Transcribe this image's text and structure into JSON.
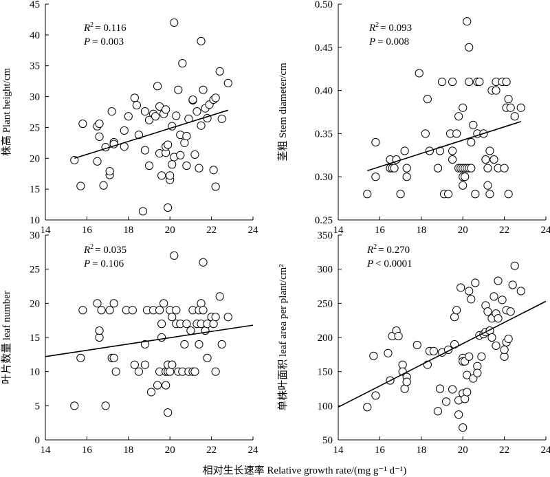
{
  "xlabel": "相对生长速率 Relative growth rate/(mg g⁻¹ d⁻¹)",
  "chart_data": [
    {
      "type": "scatter",
      "ylabel": "株高 Plant height/cm",
      "stat_r2": "= 0.116",
      "stat_p": "= 0.003",
      "xlim": [
        14,
        24
      ],
      "ylim": [
        10,
        45
      ],
      "xticks": [
        "14",
        "16",
        "18",
        "20",
        "22",
        "24"
      ],
      "yticks": [
        "10",
        "15",
        "20",
        "25",
        "30",
        "35",
        "40",
        "45"
      ],
      "trendline": {
        "x": [
          15.4,
          22.8
        ],
        "y": [
          20.0,
          27.8
        ]
      },
      "points": [
        [
          15.4,
          19.7
        ],
        [
          15.7,
          15.5
        ],
        [
          15.8,
          25.6
        ],
        [
          16.5,
          19.5
        ],
        [
          16.5,
          25.2
        ],
        [
          16.6,
          25.6
        ],
        [
          16.6,
          23.5
        ],
        [
          16.8,
          15.6
        ],
        [
          16.9,
          21.8
        ],
        [
          17.1,
          17.3
        ],
        [
          17.1,
          17.9
        ],
        [
          17.2,
          27.6
        ],
        [
          17.3,
          22.6
        ],
        [
          17.3,
          22.3
        ],
        [
          17.8,
          21.9
        ],
        [
          17.8,
          24.5
        ],
        [
          18.0,
          26.8
        ],
        [
          18.3,
          29.8
        ],
        [
          18.4,
          28.6
        ],
        [
          18.5,
          23.8
        ],
        [
          18.7,
          11.4
        ],
        [
          18.8,
          21.3
        ],
        [
          18.8,
          27.6
        ],
        [
          19.0,
          26.2
        ],
        [
          19.0,
          18.8
        ],
        [
          19.2,
          27.2
        ],
        [
          19.3,
          26.8
        ],
        [
          19.4,
          31.7
        ],
        [
          19.5,
          20.8
        ],
        [
          19.5,
          28.4
        ],
        [
          19.6,
          17.2
        ],
        [
          19.7,
          27.2
        ],
        [
          19.8,
          20.9
        ],
        [
          19.8,
          21.9
        ],
        [
          19.8,
          27.9
        ],
        [
          19.9,
          12.0
        ],
        [
          19.9,
          22.2
        ],
        [
          20.0,
          16.5
        ],
        [
          20.0,
          17.2
        ],
        [
          20.1,
          19.0
        ],
        [
          20.1,
          25.2
        ],
        [
          20.2,
          42.0
        ],
        [
          20.2,
          20.2
        ],
        [
          20.3,
          26.9
        ],
        [
          20.4,
          31.1
        ],
        [
          20.5,
          20.5
        ],
        [
          20.5,
          23.8
        ],
        [
          20.6,
          35.4
        ],
        [
          20.7,
          22.5
        ],
        [
          20.8,
          18.8
        ],
        [
          20.8,
          23.6
        ],
        [
          20.9,
          26.4
        ],
        [
          21.1,
          29.4
        ],
        [
          21.1,
          29.5
        ],
        [
          21.2,
          20.6
        ],
        [
          21.3,
          27.6
        ],
        [
          21.4,
          18.4
        ],
        [
          21.5,
          39.0
        ],
        [
          21.5,
          25.3
        ],
        [
          21.6,
          31.1
        ],
        [
          21.7,
          28.1
        ],
        [
          21.8,
          26.5
        ],
        [
          21.9,
          28.7
        ],
        [
          22.1,
          18.1
        ],
        [
          22.1,
          29.5
        ],
        [
          22.2,
          29.8
        ],
        [
          22.2,
          15.4
        ],
        [
          22.4,
          34.1
        ],
        [
          22.5,
          26.4
        ],
        [
          22.8,
          32.2
        ]
      ]
    },
    {
      "type": "scatter",
      "ylabel": "茎粗  Stem diameter/cm",
      "stat_r2": "= 0.093",
      "stat_p": "= 0.008",
      "xlim": [
        14,
        24
      ],
      "ylim": [
        0.25,
        0.5
      ],
      "xticks": [
        "14",
        "16",
        "18",
        "20",
        "22",
        "24"
      ],
      "yticks": [
        "0.25",
        "0.30",
        "0.35",
        "0.40",
        "0.45",
        "0.50"
      ],
      "trendline": {
        "x": [
          15.4,
          22.8
        ],
        "y": [
          0.307,
          0.364
        ]
      },
      "points": [
        [
          15.4,
          0.28
        ],
        [
          15.8,
          0.3
        ],
        [
          15.8,
          0.34
        ],
        [
          16.5,
          0.32
        ],
        [
          16.5,
          0.31
        ],
        [
          16.6,
          0.31
        ],
        [
          16.7,
          0.31
        ],
        [
          16.8,
          0.32
        ],
        [
          17.0,
          0.28
        ],
        [
          17.2,
          0.33
        ],
        [
          17.3,
          0.31
        ],
        [
          17.3,
          0.3
        ],
        [
          17.9,
          0.42
        ],
        [
          18.2,
          0.35
        ],
        [
          18.3,
          0.39
        ],
        [
          18.4,
          0.33
        ],
        [
          18.8,
          0.31
        ],
        [
          18.8,
          0.31
        ],
        [
          18.9,
          0.33
        ],
        [
          19.0,
          0.41
        ],
        [
          19.1,
          0.28
        ],
        [
          19.3,
          0.28
        ],
        [
          19.4,
          0.35
        ],
        [
          19.5,
          0.41
        ],
        [
          19.5,
          0.33
        ],
        [
          19.5,
          0.32
        ],
        [
          19.7,
          0.35
        ],
        [
          19.8,
          0.31
        ],
        [
          19.8,
          0.37
        ],
        [
          19.9,
          0.31
        ],
        [
          20.0,
          0.3
        ],
        [
          20.0,
          0.38
        ],
        [
          20.0,
          0.29
        ],
        [
          20.0,
          0.31
        ],
        [
          20.1,
          0.3
        ],
        [
          20.1,
          0.31
        ],
        [
          20.2,
          0.48
        ],
        [
          20.2,
          0.31
        ],
        [
          20.3,
          0.45
        ],
        [
          20.3,
          0.31
        ],
        [
          20.3,
          0.41
        ],
        [
          20.4,
          0.34
        ],
        [
          20.4,
          0.31
        ],
        [
          20.5,
          0.36
        ],
        [
          20.6,
          0.28
        ],
        [
          20.7,
          0.41
        ],
        [
          20.7,
          0.35
        ],
        [
          20.8,
          0.41
        ],
        [
          21.0,
          0.35
        ],
        [
          21.1,
          0.32
        ],
        [
          21.2,
          0.31
        ],
        [
          21.2,
          0.29
        ],
        [
          21.3,
          0.33
        ],
        [
          21.3,
          0.28
        ],
        [
          21.4,
          0.4
        ],
        [
          21.5,
          0.32
        ],
        [
          21.6,
          0.41
        ],
        [
          21.6,
          0.4
        ],
        [
          21.7,
          0.31
        ],
        [
          21.9,
          0.41
        ],
        [
          22.0,
          0.31
        ],
        [
          22.1,
          0.41
        ],
        [
          22.1,
          0.38
        ],
        [
          22.2,
          0.28
        ],
        [
          22.2,
          0.39
        ],
        [
          22.3,
          0.38
        ],
        [
          22.5,
          0.37
        ],
        [
          22.8,
          0.38
        ]
      ]
    },
    {
      "type": "scatter",
      "ylabel": "叶片数量  leaf number",
      "stat_r2": "= 0.035",
      "stat_p": "= 0.106",
      "xlim": [
        14,
        24
      ],
      "ylim": [
        0,
        30
      ],
      "xticks": [
        "14",
        "16",
        "18",
        "20",
        "22",
        "24"
      ],
      "yticks": [
        "0",
        "5",
        "10",
        "15",
        "20",
        "25",
        "30"
      ],
      "trendline": {
        "x": [
          14.0,
          24.0
        ],
        "y": [
          12.2,
          16.8
        ]
      },
      "points": [
        [
          15.4,
          5
        ],
        [
          15.7,
          12
        ],
        [
          15.8,
          19
        ],
        [
          16.5,
          20
        ],
        [
          16.6,
          15
        ],
        [
          16.6,
          16
        ],
        [
          16.7,
          19
        ],
        [
          16.9,
          5
        ],
        [
          17.1,
          19
        ],
        [
          17.2,
          12
        ],
        [
          17.3,
          12
        ],
        [
          17.3,
          20
        ],
        [
          17.4,
          10
        ],
        [
          17.9,
          19
        ],
        [
          18.2,
          19
        ],
        [
          18.3,
          11
        ],
        [
          18.5,
          10
        ],
        [
          18.8,
          11
        ],
        [
          18.8,
          14
        ],
        [
          18.9,
          19
        ],
        [
          19.1,
          7
        ],
        [
          19.2,
          19
        ],
        [
          19.4,
          8
        ],
        [
          19.5,
          10
        ],
        [
          19.5,
          19
        ],
        [
          19.6,
          15
        ],
        [
          19.6,
          17
        ],
        [
          19.7,
          20
        ],
        [
          19.8,
          10
        ],
        [
          19.8,
          8
        ],
        [
          19.9,
          10
        ],
        [
          19.9,
          11
        ],
        [
          19.9,
          4
        ],
        [
          20.0,
          19
        ],
        [
          20.0,
          10
        ],
        [
          20.1,
          11
        ],
        [
          20.1,
          18
        ],
        [
          20.1,
          11
        ],
        [
          20.2,
          27
        ],
        [
          20.3,
          19
        ],
        [
          20.3,
          17
        ],
        [
          20.4,
          10
        ],
        [
          20.5,
          17
        ],
        [
          20.6,
          10
        ],
        [
          20.7,
          14
        ],
        [
          20.8,
          17
        ],
        [
          20.9,
          10
        ],
        [
          21.0,
          16
        ],
        [
          21.1,
          10
        ],
        [
          21.1,
          19
        ],
        [
          21.2,
          10
        ],
        [
          21.3,
          17
        ],
        [
          21.4,
          19
        ],
        [
          21.4,
          14
        ],
        [
          21.5,
          20
        ],
        [
          21.5,
          17
        ],
        [
          21.6,
          19
        ],
        [
          21.6,
          26
        ],
        [
          21.7,
          16
        ],
        [
          21.8,
          17
        ],
        [
          21.8,
          12
        ],
        [
          22.0,
          18
        ],
        [
          22.1,
          17
        ],
        [
          22.2,
          18
        ],
        [
          22.2,
          10
        ],
        [
          22.4,
          21
        ],
        [
          22.5,
          14
        ],
        [
          22.8,
          18
        ]
      ]
    },
    {
      "type": "scatter",
      "ylabel": "单株叶面积  leaf area per plant/cm²",
      "stat_r2": "= 0.270",
      "stat_p": "< 0.0001",
      "xlim": [
        14,
        24
      ],
      "ylim": [
        50,
        350
      ],
      "xticks": [
        "14",
        "16",
        "18",
        "20",
        "22",
        "24"
      ],
      "yticks": [
        "50",
        "100",
        "150",
        "200",
        "250",
        "300",
        "350"
      ],
      "trendline": {
        "x": [
          14.0,
          24.0
        ],
        "y": [
          98,
          253
        ]
      },
      "points": [
        [
          15.4,
          98
        ],
        [
          15.7,
          173
        ],
        [
          15.8,
          115
        ],
        [
          16.4,
          177
        ],
        [
          16.5,
          137
        ],
        [
          16.6,
          202
        ],
        [
          16.8,
          210
        ],
        [
          16.9,
          202
        ],
        [
          17.1,
          160
        ],
        [
          17.1,
          150
        ],
        [
          17.2,
          125
        ],
        [
          17.3,
          142
        ],
        [
          17.3,
          135
        ],
        [
          17.8,
          189
        ],
        [
          18.3,
          160
        ],
        [
          18.4,
          180
        ],
        [
          18.6,
          180
        ],
        [
          18.8,
          92
        ],
        [
          18.9,
          125
        ],
        [
          19.0,
          178
        ],
        [
          19.2,
          106
        ],
        [
          19.3,
          182
        ],
        [
          19.5,
          124
        ],
        [
          19.6,
          190
        ],
        [
          19.6,
          230
        ],
        [
          19.7,
          240
        ],
        [
          19.8,
          108
        ],
        [
          19.8,
          87
        ],
        [
          19.9,
          273
        ],
        [
          20.0,
          170
        ],
        [
          20.0,
          165
        ],
        [
          20.0,
          118
        ],
        [
          20.0,
          68
        ],
        [
          20.1,
          110
        ],
        [
          20.1,
          165
        ],
        [
          20.2,
          120
        ],
        [
          20.2,
          145
        ],
        [
          20.3,
          172
        ],
        [
          20.3,
          268
        ],
        [
          20.4,
          256
        ],
        [
          20.5,
          140
        ],
        [
          20.6,
          280
        ],
        [
          20.7,
          158
        ],
        [
          20.7,
          148
        ],
        [
          20.8,
          203
        ],
        [
          20.9,
          172
        ],
        [
          21.0,
          205
        ],
        [
          21.1,
          208
        ],
        [
          21.1,
          247
        ],
        [
          21.2,
          238
        ],
        [
          21.3,
          210
        ],
        [
          21.4,
          228
        ],
        [
          21.4,
          200
        ],
        [
          21.5,
          260
        ],
        [
          21.6,
          188
        ],
        [
          21.6,
          235
        ],
        [
          21.7,
          283
        ],
        [
          21.7,
          228
        ],
        [
          21.9,
          255
        ],
        [
          22.0,
          172
        ],
        [
          22.0,
          182
        ],
        [
          22.1,
          240
        ],
        [
          22.1,
          193
        ],
        [
          22.2,
          198
        ],
        [
          22.3,
          238
        ],
        [
          22.4,
          277
        ],
        [
          22.5,
          305
        ],
        [
          22.8,
          268
        ]
      ]
    }
  ]
}
